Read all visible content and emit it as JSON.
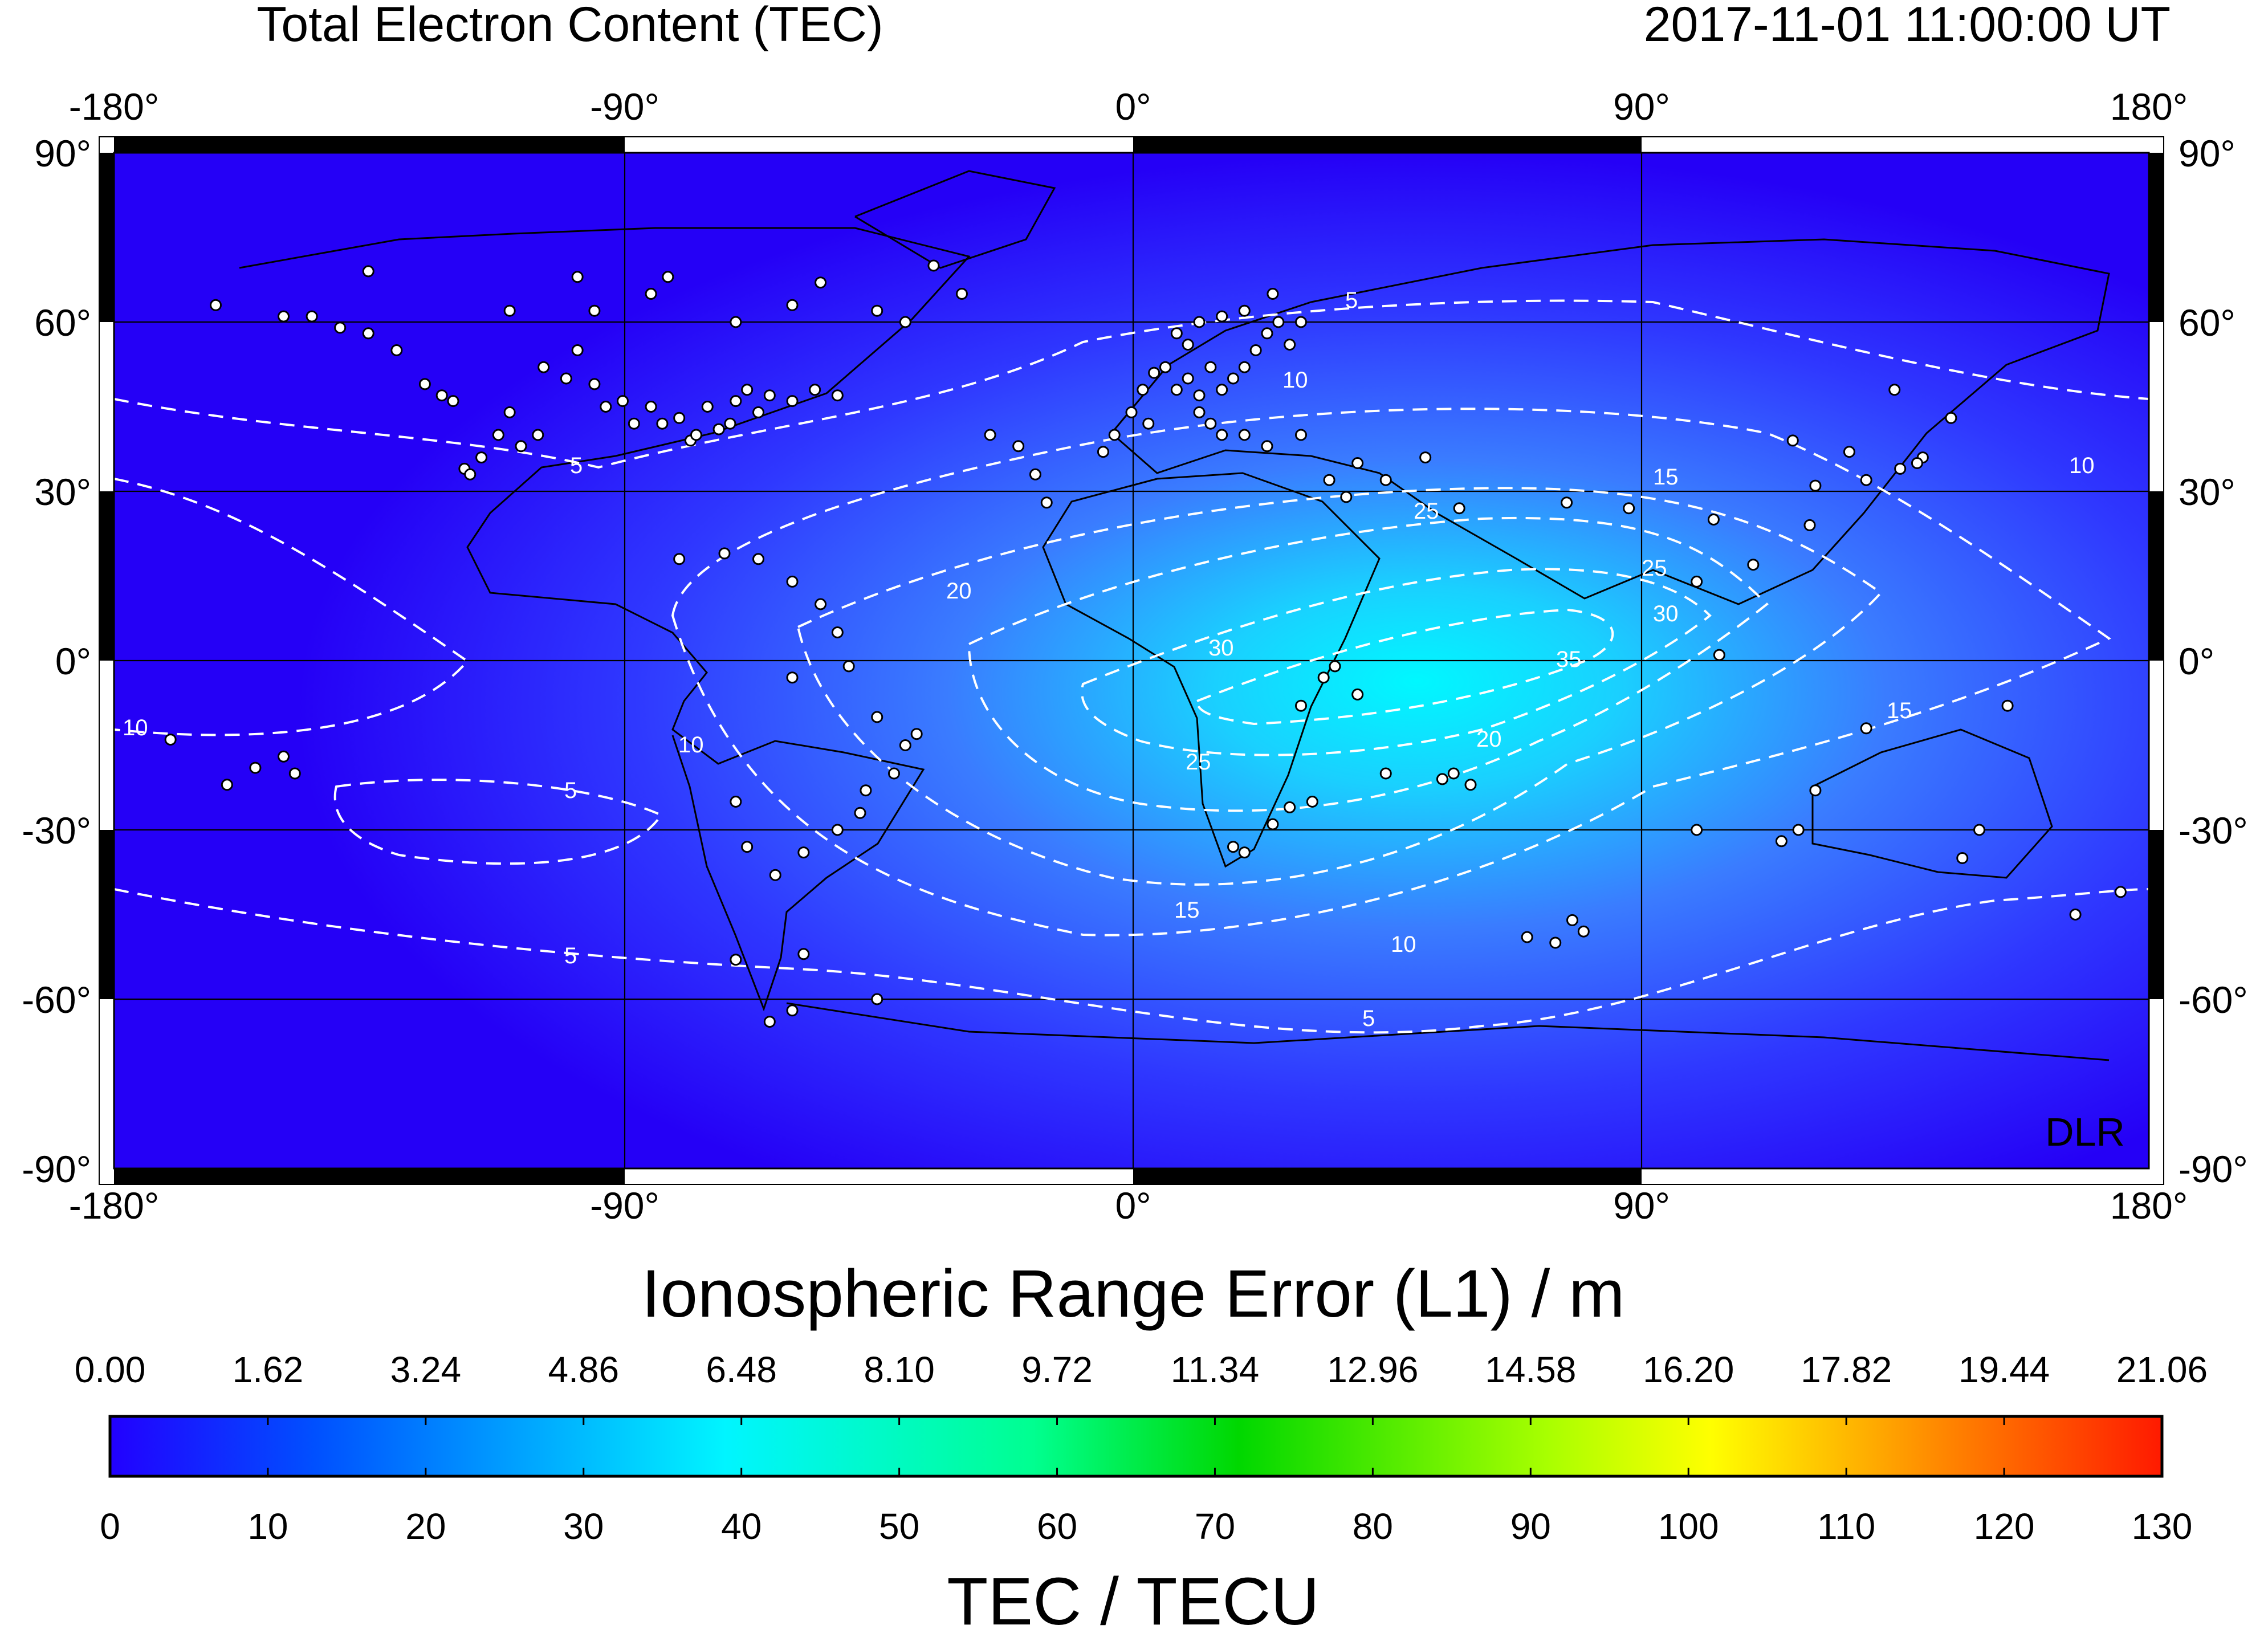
{
  "header": {
    "title": "Total Electron Content (TEC)",
    "datetime": "2017-11-01  11:00:00 UT"
  },
  "map": {
    "watermark": "DLR",
    "lon_ticks": [
      "-180°",
      "-90°",
      "0°",
      "90°",
      "180°"
    ],
    "lat_ticks": [
      "90°",
      "60°",
      "30°",
      "0°",
      "-30°",
      "-60°",
      "-90°"
    ],
    "lon_range": [
      -180,
      180
    ],
    "lat_range": [
      -90,
      90
    ],
    "contour_labels": [
      "5",
      "10",
      "15",
      "20",
      "25",
      "30",
      "35"
    ],
    "field_colors": {
      "low": "#2a00ff",
      "mid": "#4a8cff",
      "high": "#00f0ff"
    },
    "station_color": "#ffffff"
  },
  "colorbar_top": {
    "title": "Ionospheric Range Error (L1) / m",
    "ticks": [
      "0.00",
      "1.62",
      "3.24",
      "4.86",
      "6.48",
      "8.10",
      "9.72",
      "11.34",
      "12.96",
      "14.58",
      "16.20",
      "17.82",
      "19.44",
      "21.06"
    ]
  },
  "colorbar_bottom": {
    "title": "TEC / TECU",
    "ticks": [
      "0",
      "10",
      "20",
      "30",
      "40",
      "50",
      "60",
      "70",
      "80",
      "90",
      "100",
      "110",
      "120",
      "130"
    ]
  },
  "colorscale": [
    "#2200ff",
    "#0060ff",
    "#00f5ff",
    "#00ff80",
    "#00e000",
    "#c0ff00",
    "#ffff00",
    "#ff8000",
    "#ff1a00"
  ]
}
